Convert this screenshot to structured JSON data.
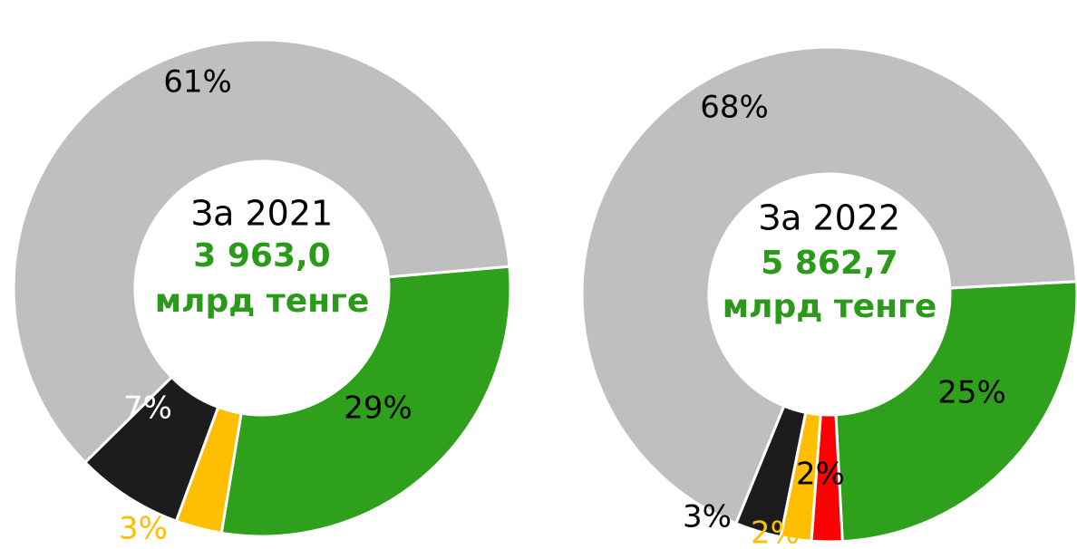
{
  "chart_data": [
    {
      "type": "pie",
      "title": "За 2021",
      "total": "3 963,0",
      "unit": "млрд тенге",
      "values": [
        29,
        3,
        7,
        61
      ],
      "value_labels": [
        "29%",
        "3%",
        "7%",
        "61%"
      ],
      "colors": [
        "#2ea01c",
        "#ffbf00",
        "#1c1c1c",
        "#bfbfbf"
      ],
      "label_colors": [
        "#000000",
        "#ffbf00",
        "#ffffff",
        "#000000"
      ]
    },
    {
      "type": "pie",
      "title": "За 2022",
      "total": "5 862,7",
      "unit": "млрд тенге",
      "values": [
        25,
        2,
        2,
        3,
        68
      ],
      "value_labels": [
        "25%",
        "2%",
        "2%",
        "3%",
        "68%"
      ],
      "colors": [
        "#2ea01c",
        "#ff0000",
        "#ffbf00",
        "#1c1c1c",
        "#bfbfbf"
      ],
      "label_colors": [
        "#000000",
        "#000000",
        "#ffbf00",
        "#000000",
        "#000000"
      ]
    }
  ]
}
